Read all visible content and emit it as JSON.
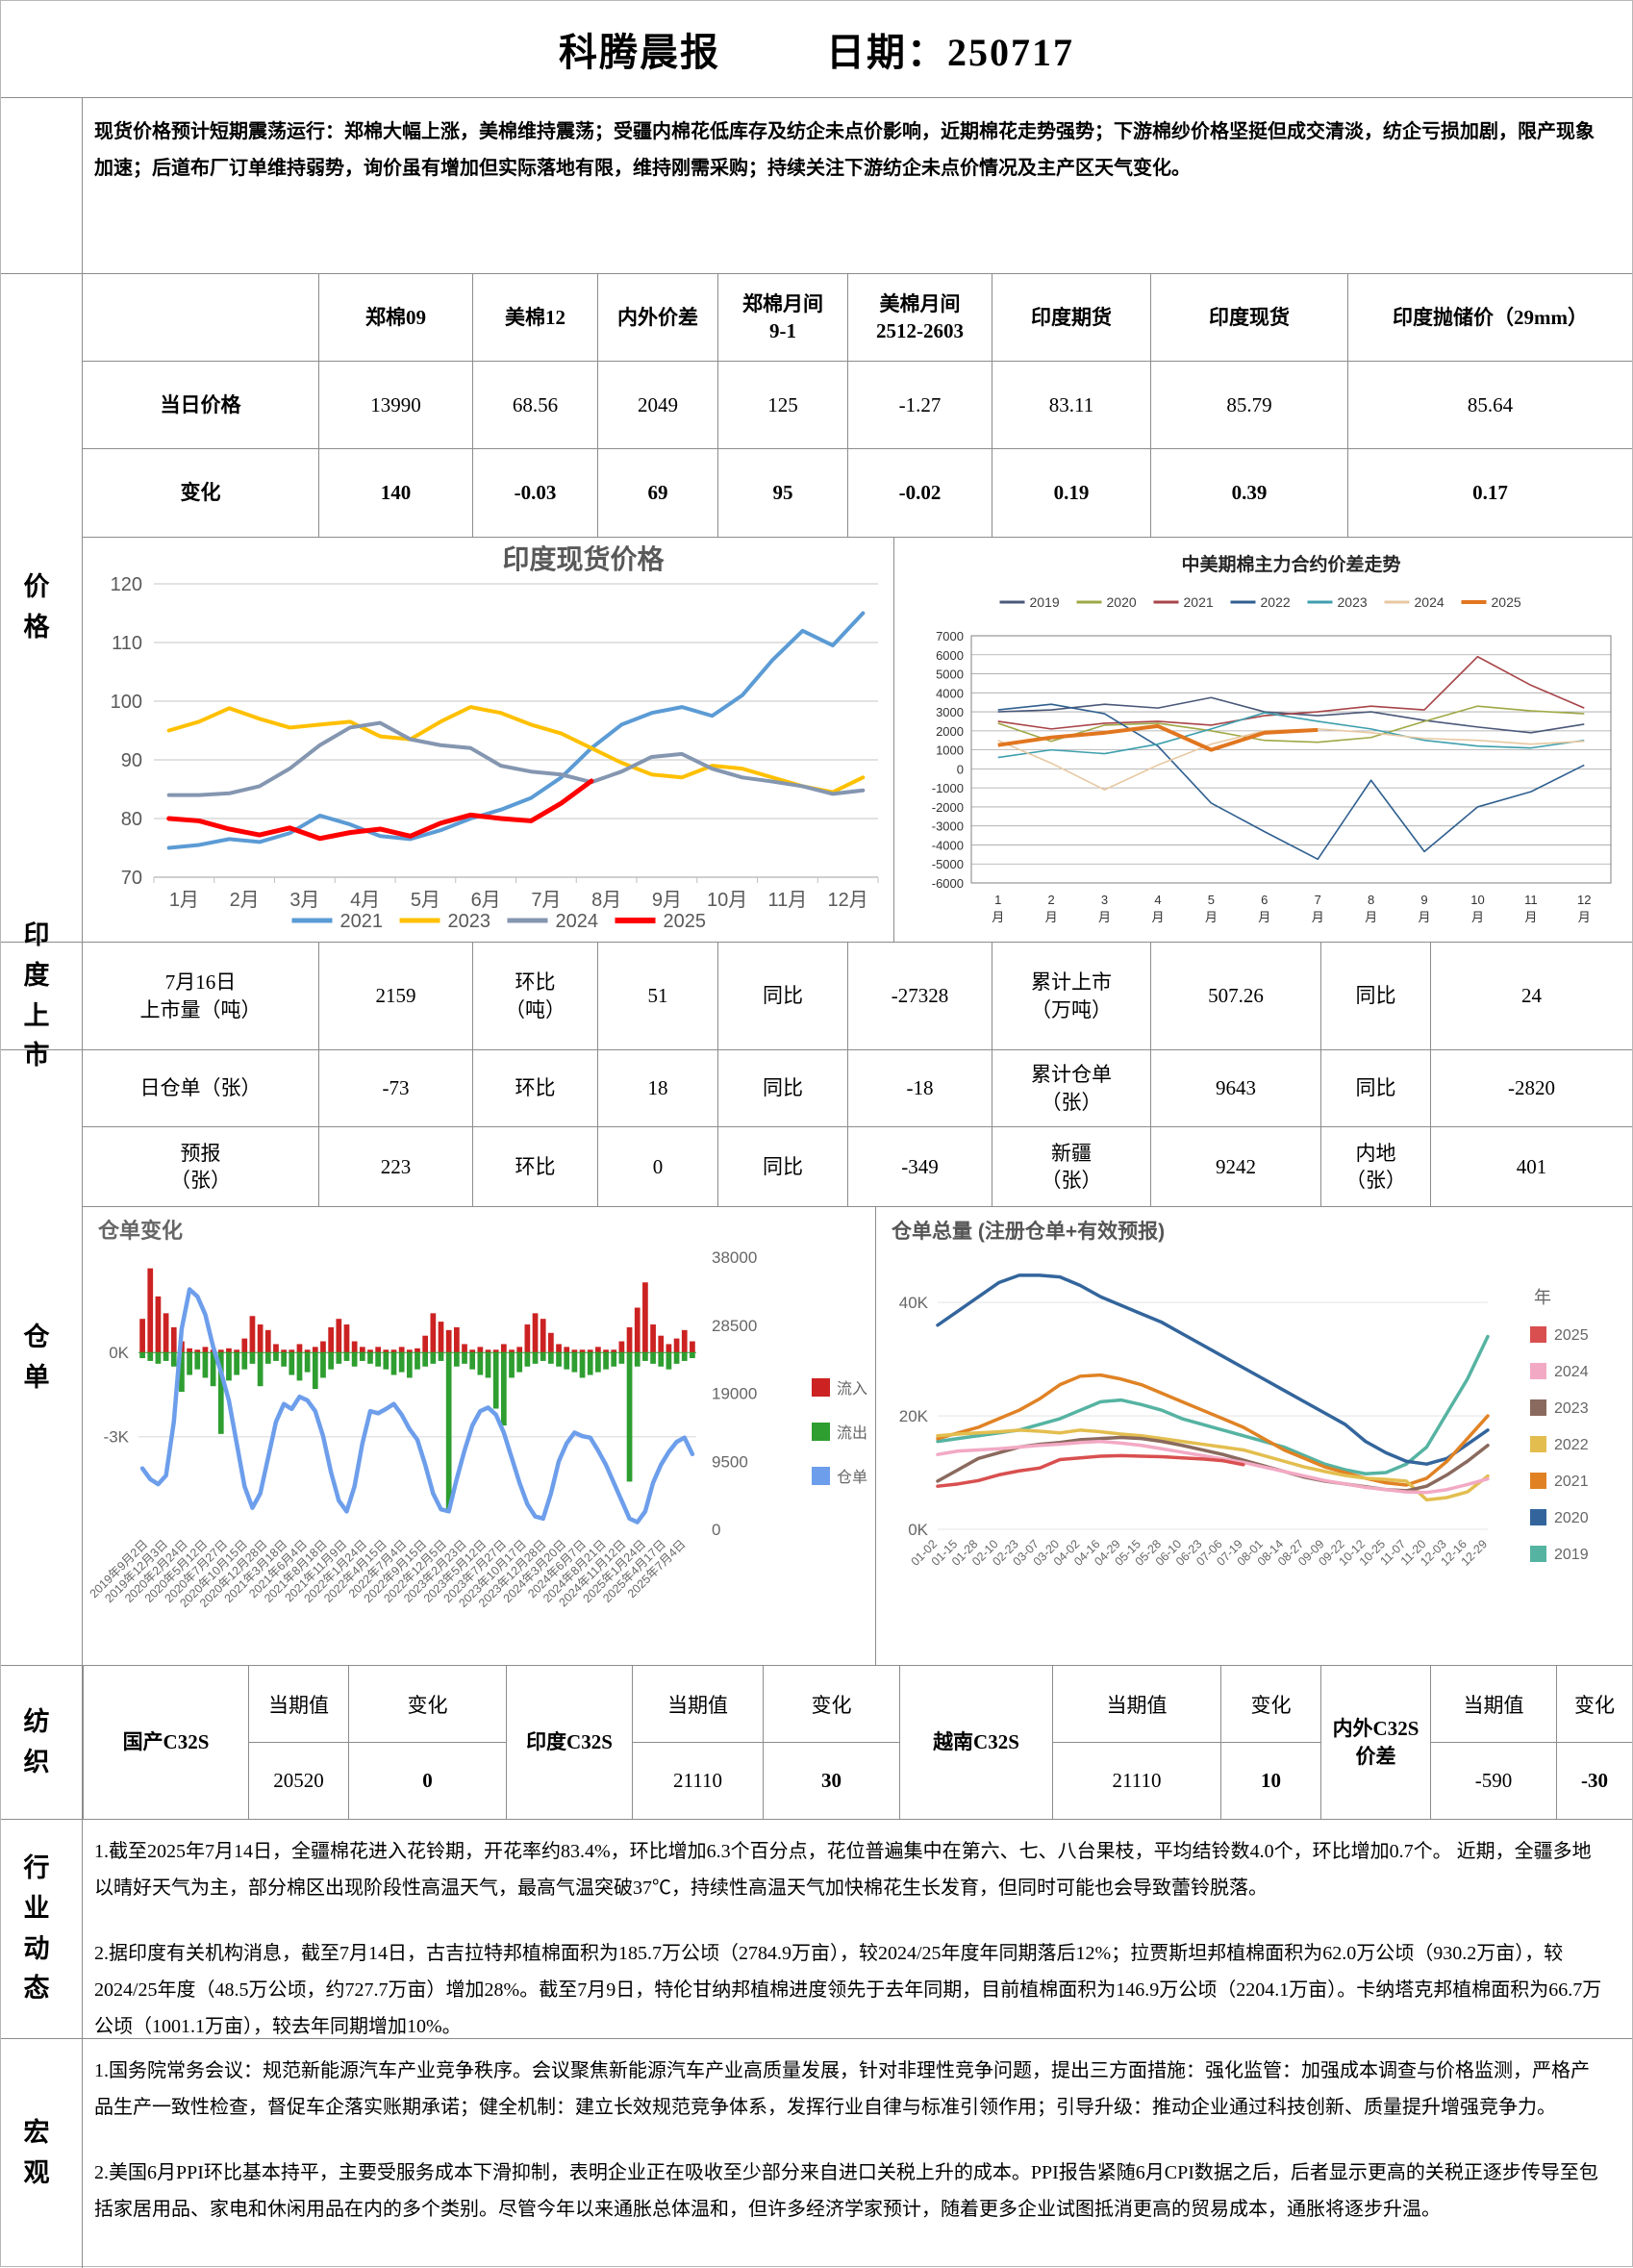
{
  "header": {
    "title": "科腾晨报",
    "date_label": "日期：250717"
  },
  "summary": {
    "lead": "现货价格预计短期震荡运行：",
    "body": "郑棉大幅上涨，美棉维持震荡；受疆内棉花低库存及纺企未点价影响，近期棉花走势强势；下游棉纱价格坚挺但成交清淡，纺企亏损加剧，限产现象加速；后道布厂订单维持弱势，询价虽有增加但实际落地有限，维持刚需采购；持续关注下游纺企未点价情况及主产区天气变化。"
  },
  "sidebar": {
    "price": "价格",
    "india": "印度上\n市",
    "warehouse": "仓单",
    "textile": "纺织",
    "industry": "行业动\n态",
    "macro": "宏观"
  },
  "price_table": {
    "col_headers": [
      "郑棉09",
      "美棉12",
      "内外价差",
      "郑棉月间\n9-1",
      "美棉月间\n2512-2603",
      "印度期货",
      "印度现货",
      "印度抛储价（29mm）"
    ],
    "rows": [
      {
        "label": "当日价格",
        "values": [
          "13990",
          "68.56",
          "2049",
          "125",
          "-1.27",
          "83.11",
          "85.79",
          "85.64"
        ]
      },
      {
        "label": "变化",
        "values": [
          "140",
          "-0.03",
          "69",
          "95",
          "-0.02",
          "0.19",
          "0.39",
          "0.17"
        ]
      }
    ]
  },
  "india_listing": {
    "cells": [
      "7月16日\n上市量（吨）",
      "2159",
      "环比\n（吨）",
      "51",
      "同比",
      "-27328",
      "累计上市\n（万吨）",
      "507.26",
      "同比",
      "24"
    ]
  },
  "warehouse": {
    "row1": [
      "日仓单（张）",
      "-73",
      "环比",
      "18",
      "同比",
      "-18",
      "累计仓单\n（张）",
      "9643",
      "同比",
      "-2820"
    ],
    "row2": [
      "预报\n（张）",
      "223",
      "环比",
      "0",
      "同比",
      "-349",
      "新疆\n（张）",
      "9242",
      "内地\n（张）",
      "401"
    ]
  },
  "textile": {
    "current_label": "当期值",
    "change_label": "变化",
    "groups": [
      {
        "name": "国产C32S",
        "current": "20520",
        "change": "0"
      },
      {
        "name": "印度C32S",
        "current": "21110",
        "change": "30"
      },
      {
        "name": "越南C32S",
        "current": "21110",
        "change": "10"
      },
      {
        "name": "内外C32S\n价差",
        "current": "-590",
        "change": "-30"
      }
    ]
  },
  "industry": {
    "p1": "1.截至2025年7月14日，全疆棉花进入花铃期，开花率约83.4%，环比增加6.3个百分点，花位普遍集中在第六、七、八台果枝，平均结铃数4.0个，环比增加0.7个。 近期，全疆多地以晴好天气为主，部分棉区出现阶段性高温天气，最高气温突破37℃，持续性高温天气加快棉花生长发育，但同时可能也会导致蕾铃脱落。",
    "p2": "2.据印度有关机构消息，截至7月14日，古吉拉特邦植棉面积为185.7万公顷（2784.9万亩），较2024/25年度年同期落后12%；拉贾斯坦邦植棉面积为62.0万公顷（930.2万亩），较2024/25年度（48.5万公顷，约727.7万亩）增加28%。截至7月9日，特伦甘纳邦植棉进度领先于去年同期，目前植棉面积为146.9万公顷（2204.1万亩）。卡纳塔克邦植棉面积为66.7万公顷（1001.1万亩），较去年同期增加10%。"
  },
  "macro": {
    "p1": "1.国务院常务会议：规范新能源汽车产业竞争秩序。会议聚焦新能源汽车产业高质量发展，针对非理性竞争问题，提出三方面措施：强化监管：加强成本调查与价格监测，严格产品生产一致性检查，督促车企落实账期承诺；健全机制：建立长效规范竞争体系，发挥行业自律与标准引领作用；引导升级：推动企业通过科技创新、质量提升增强竞争力。",
    "p2": "2.美国6月PPI环比基本持平，主要受服务成本下滑抑制，表明企业正在吸收至少部分来自进口关税上升的成本。PPI报告紧随6月CPI数据之后，后者显示更高的关税正逐步传导至包括家居用品、家电和休闲用品在内的多个类别。尽管今年以来通胀总体温和，但许多经济学家预计，随着更多企业试图抵消更高的贸易成本，通胀将逐步升温。"
  },
  "chart_data": [
    {
      "type": "line",
      "title": "印度现货价格",
      "y_min": 70,
      "y_max": 120,
      "y_ticks": [
        70,
        80,
        90,
        100,
        110,
        120
      ],
      "x_labels": [
        "1月",
        "2月",
        "3月",
        "4月",
        "5月",
        "6月",
        "7月",
        "8月",
        "9月",
        "10月",
        "11月",
        "12月"
      ],
      "points_per_month": 2,
      "legend_position": "bottom",
      "grid": true,
      "series": [
        {
          "name": "2021",
          "color": "#5B9BD5",
          "width": 4,
          "values": [
            75,
            75.5,
            76.5,
            76,
            77.5,
            80.5,
            79,
            77,
            76.5,
            78,
            80,
            81.5,
            83.5,
            87,
            92,
            96,
            98,
            99,
            97.5,
            101,
            107,
            112,
            109.5,
            115
          ]
        },
        {
          "name": "2023",
          "color": "#FFC000",
          "width": 4,
          "values": [
            95,
            96.5,
            98.8,
            97,
            95.5,
            96,
            96.5,
            94,
            93.5,
            96.5,
            99,
            98,
            96,
            94.5,
            92,
            89.5,
            87.5,
            87,
            89,
            88.5,
            87,
            85.5,
            84.5,
            87
          ]
        },
        {
          "name": "2024",
          "color": "#8496B0",
          "width": 4,
          "values": [
            84,
            84,
            84.3,
            85.5,
            88.5,
            92.5,
            95.5,
            96.3,
            93.5,
            92.5,
            92,
            89,
            88,
            87.5,
            86.2,
            88,
            90.5,
            91,
            88.5,
            87,
            86.3,
            85.5,
            84.2,
            84.8
          ]
        },
        {
          "name": "2025",
          "color": "#FF0000",
          "width": 5,
          "values": [
            80,
            79.6,
            78.2,
            77.2,
            78.4,
            76.6,
            77.6,
            78.2,
            77,
            79.2,
            80.6,
            80,
            79.6,
            82.6,
            86.4
          ]
        }
      ]
    },
    {
      "type": "line_spread",
      "title": "中美期棉主力合约价差走势",
      "y_min": -6000,
      "y_max": 7000,
      "y_step": 1000,
      "x_labels": [
        "1",
        "2",
        "3",
        "4",
        "5",
        "6",
        "7",
        "8",
        "9",
        "10",
        "11",
        "12"
      ],
      "x_label_suffix": "月",
      "legend_position": "top",
      "series": [
        {
          "name": "2019",
          "color": "#4A5878",
          "width": 1.6,
          "values": [
            3000,
            3100,
            3400,
            3200,
            3750,
            3000,
            2800,
            3000,
            2550,
            2200,
            1900,
            2350
          ]
        },
        {
          "name": "2020",
          "color": "#9FA845",
          "width": 1.6,
          "values": [
            2400,
            1450,
            2300,
            2400,
            2000,
            1500,
            1400,
            1650,
            2500,
            3300,
            3050,
            2900
          ]
        },
        {
          "name": "2021",
          "color": "#A84448",
          "width": 1.6,
          "values": [
            2500,
            2100,
            2400,
            2500,
            2300,
            2800,
            3000,
            3300,
            3100,
            5900,
            4400,
            3200
          ]
        },
        {
          "name": "2022",
          "color": "#2F5F8F",
          "width": 1.6,
          "values": [
            3100,
            3400,
            2900,
            1200,
            -1800,
            -3300,
            -4750,
            -600,
            -4350,
            -2000,
            -1200,
            200
          ]
        },
        {
          "name": "2023",
          "color": "#3E9FAD",
          "width": 1.6,
          "values": [
            600,
            1000,
            800,
            1300,
            2100,
            2950,
            2500,
            2100,
            1500,
            1200,
            1100,
            1500
          ]
        },
        {
          "name": "2024",
          "color": "#E7C8A2",
          "width": 1.6,
          "values": [
            1500,
            300,
            -1100,
            200,
            1300,
            2000,
            2100,
            1900,
            1600,
            1500,
            1300,
            1450
          ]
        },
        {
          "name": "2025",
          "color": "#E1761F",
          "width": 4,
          "values": [
            1250,
            1650,
            1900,
            2250,
            1000,
            1900,
            2050
          ]
        }
      ]
    },
    {
      "type": "bars_line",
      "title": "仓单变化",
      "left_min": -6.3,
      "left_max": 3.4,
      "left_ticks": [
        {
          "v": 0,
          "label": "0K"
        },
        {
          "v": -3,
          "label": "-3K"
        }
      ],
      "right_min": 0,
      "right_max": 38000,
      "right_ticks": [
        38000,
        28500,
        19000,
        9500,
        0
      ],
      "legend": [
        {
          "label": "流入",
          "color": "#CC2222"
        },
        {
          "label": "流出",
          "color": "#2E9E30"
        },
        {
          "label": "仓单",
          "color": "#6D9EEB"
        }
      ],
      "x_labels": [
        "2019年9月2日",
        "2019年12月3日",
        "2020年2月24日",
        "2020年5月12日",
        "2020年7月27日",
        "2020年10月15日",
        "2020年12月28日",
        "2021年3月18日",
        "2021年6月4日",
        "2021年8月18日",
        "2021年11月9日",
        "2022年1月24日",
        "2022年4月15日",
        "2022年7月4日",
        "2022年9月15日",
        "2022年12月5日",
        "2023年2月23日",
        "2023年5月12日",
        "2023年7月27日",
        "2023年10月17日",
        "2023年12月28日",
        "2024年3月20日",
        "2024年6月7日",
        "2024年8月21日",
        "2024年11月12日",
        "2025年1月24日",
        "2025年4月17日",
        "2025年7月4日"
      ],
      "inflow": [
        1.2,
        3.0,
        2.0,
        1.4,
        0.9,
        0.4,
        0.15,
        0.1,
        0.2,
        0.1,
        0.1,
        0.15,
        0.1,
        0.5,
        1.3,
        1.0,
        0.8,
        0.3,
        0.1,
        0.1,
        0.3,
        0.1,
        0.2,
        0.4,
        0.9,
        1.2,
        1.0,
        0.4,
        0.2,
        0.1,
        0.2,
        0.1,
        0.1,
        0.2,
        0.1,
        0.15,
        0.6,
        1.4,
        1.1,
        0.8,
        0.9,
        0.3,
        0.1,
        0.2,
        0.1,
        0.1,
        0.3,
        0.1,
        0.2,
        1.0,
        1.4,
        1.2,
        0.7,
        0.3,
        0.2,
        0.1,
        0.1,
        0.1,
        0.2,
        0.1,
        0.1,
        0.4,
        0.9,
        1.6,
        2.5,
        1.0,
        0.6,
        0.3,
        0.5,
        0.8,
        0.4
      ],
      "outflow": [
        -0.2,
        -0.3,
        -0.4,
        -0.3,
        -0.5,
        -1.4,
        -0.8,
        -0.6,
        -0.9,
        -1.2,
        -2.9,
        -1.0,
        -0.8,
        -0.6,
        -0.4,
        -1.2,
        -0.4,
        -0.3,
        -0.5,
        -0.8,
        -1.0,
        -0.7,
        -1.3,
        -0.9,
        -0.6,
        -0.4,
        -0.3,
        -0.5,
        -0.3,
        -0.4,
        -0.5,
        -0.6,
        -0.8,
        -0.7,
        -0.9,
        -0.6,
        -0.5,
        -0.4,
        -0.3,
        -5.6,
        -0.5,
        -0.4,
        -0.6,
        -0.8,
        -0.9,
        -2.0,
        -2.6,
        -0.9,
        -0.7,
        -0.5,
        -0.4,
        -0.3,
        -0.4,
        -0.5,
        -0.6,
        -0.7,
        -0.9,
        -0.8,
        -0.7,
        -0.6,
        -0.5,
        -0.4,
        -4.6,
        -0.5,
        -0.3,
        -0.4,
        -0.5,
        -0.6,
        -0.4,
        -0.3,
        -0.2
      ],
      "receipts": [
        8500,
        7000,
        6300,
        7500,
        15000,
        28000,
        33500,
        32500,
        30000,
        25500,
        22000,
        18000,
        12000,
        6000,
        3000,
        5000,
        10000,
        15000,
        17500,
        16800,
        18500,
        18000,
        16500,
        13000,
        8000,
        4000,
        2500,
        6000,
        12000,
        16500,
        16200,
        16800,
        17500,
        16000,
        14000,
        12500,
        9000,
        5000,
        2800,
        2500,
        7000,
        11000,
        14500,
        16500,
        17000,
        16000,
        13500,
        10000,
        6500,
        3500,
        1800,
        1500,
        5000,
        9500,
        12000,
        13500,
        13000,
        12800,
        11000,
        9000,
        6500,
        4000,
        1500,
        1000,
        2500,
        6500,
        9000,
        10800,
        12200,
        12800,
        10500
      ]
    },
    {
      "type": "multi_line",
      "title": "仓单总量 (注册仓单+有效预报)",
      "legend_title": "年",
      "y_min": 0,
      "y_max": 48,
      "y_ticks": [
        {
          "v": 0,
          "label": "0K"
        },
        {
          "v": 20,
          "label": "20K"
        },
        {
          "v": 40,
          "label": "40K"
        }
      ],
      "x_labels": [
        "01-02",
        "01-15",
        "01-28",
        "02-10",
        "02-23",
        "03-07",
        "03-20",
        "04-02",
        "04-16",
        "04-29",
        "05-15",
        "05-28",
        "06-10",
        "06-23",
        "07-06",
        "07-19",
        "08-01",
        "08-14",
        "08-27",
        "09-09",
        "09-22",
        "10-12",
        "10-25",
        "11-07",
        "11-20",
        "12-03",
        "12-16",
        "12-29"
      ],
      "series": [
        {
          "name": "2025",
          "color": "#D94F4F",
          "width": 3.5,
          "values": [
            7.6,
            8,
            8.6,
            9.6,
            10.3,
            10.8,
            12.3,
            12.6,
            12.9,
            13,
            12.9,
            12.8,
            12.6,
            12.4,
            12.1,
            11.4
          ]
        },
        {
          "name": "2024",
          "color": "#F2A9C4",
          "width": 3.5,
          "values": [
            13.2,
            13.8,
            14,
            14.2,
            14.5,
            14.8,
            15,
            15.3,
            15.5,
            15.2,
            14.8,
            14.2,
            13.6,
            13,
            12.4,
            11.8,
            11,
            10.2,
            9.4,
            8.6,
            8,
            7.4,
            7,
            6.6,
            6.5,
            7,
            7.9,
            8.9
          ]
        },
        {
          "name": "2023",
          "color": "#8A6A5E",
          "width": 3.5,
          "values": [
            8.5,
            10.5,
            12.5,
            13.5,
            14.5,
            15,
            15.3,
            15.8,
            16,
            16.2,
            16,
            15.5,
            14.8,
            14,
            13.2,
            12.2,
            11.2,
            10.2,
            9.2,
            8.5,
            8,
            7.5,
            7,
            6.8,
            7.6,
            9.6,
            12,
            14.8
          ]
        },
        {
          "name": "2022",
          "color": "#E3BE4F",
          "width": 3.5,
          "values": [
            16.5,
            16.8,
            17,
            17.2,
            17.5,
            17.3,
            17,
            17.5,
            17.2,
            16.8,
            16.5,
            16,
            15.5,
            15,
            14.5,
            14,
            13,
            12,
            11,
            10.2,
            9.5,
            9,
            8.8,
            8.5,
            5.2,
            5.6,
            6.6,
            9.4
          ]
        },
        {
          "name": "2021",
          "color": "#E08224",
          "width": 3.5,
          "values": [
            16,
            17,
            18,
            19.5,
            21,
            23,
            25.5,
            27,
            27.2,
            26.5,
            25.5,
            24,
            22.5,
            21,
            19.5,
            18,
            16,
            14,
            12.5,
            11,
            10,
            9,
            8.2,
            7.8,
            9,
            12,
            16,
            20
          ]
        },
        {
          "name": "2020",
          "color": "#33659C",
          "width": 3.5,
          "values": [
            36,
            38.5,
            41,
            43.5,
            44.8,
            44.8,
            44.5,
            43,
            41,
            39.5,
            38,
            36.5,
            34.5,
            32.5,
            30.5,
            28.5,
            26.5,
            24.5,
            22.5,
            20.5,
            18.5,
            15.5,
            13.5,
            12,
            11.5,
            12.5,
            15,
            17.5
          ]
        },
        {
          "name": "2019",
          "color": "#55B3A2",
          "width": 3.5,
          "values": [
            15.5,
            16,
            16.5,
            17,
            17.5,
            18.5,
            19.5,
            21,
            22.5,
            22.8,
            22,
            21,
            19.5,
            18.5,
            17.5,
            16.5,
            15.5,
            14.5,
            13,
            11.5,
            10.5,
            9.8,
            10,
            11.5,
            14.5,
            20.5,
            26.5,
            34
          ]
        }
      ]
    }
  ]
}
